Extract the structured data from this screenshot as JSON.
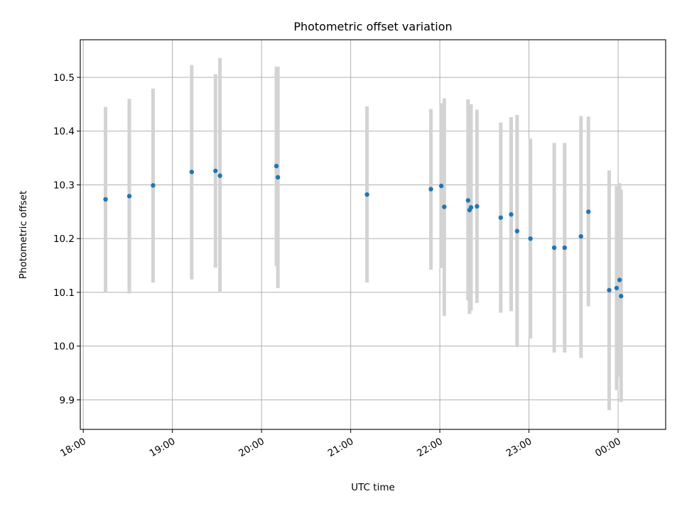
{
  "chart_data": {
    "type": "scatter",
    "title": "Photometric offset variation",
    "xlabel": "UTC time",
    "ylabel": "Photometric offset",
    "x_axis_kind": "time",
    "xlim": [
      "17:58",
      "00:32"
    ],
    "ylim": [
      9.845,
      10.57
    ],
    "x_ticks": [
      "18:00",
      "19:00",
      "20:00",
      "21:00",
      "22:00",
      "23:00",
      "00:00"
    ],
    "y_ticks": [
      "9.9",
      "10.0",
      "10.1",
      "10.2",
      "10.3",
      "10.4",
      "10.5"
    ],
    "grid": true,
    "legend": "none",
    "colors": {
      "points": "#1f77b4",
      "errorbars": "#d3d3d3",
      "grid": "#b0b0b0"
    },
    "series": [
      {
        "points": [
          {
            "x": "18:15",
            "y": 10.273,
            "ylow": 10.1,
            "yhigh": 10.445
          },
          {
            "x": "18:31",
            "y": 10.279,
            "ylow": 10.098,
            "yhigh": 10.46
          },
          {
            "x": "18:47",
            "y": 10.299,
            "ylow": 10.118,
            "yhigh": 10.479
          },
          {
            "x": "19:13",
            "y": 10.324,
            "ylow": 10.124,
            "yhigh": 10.523
          },
          {
            "x": "19:29",
            "y": 10.326,
            "ylow": 10.146,
            "yhigh": 10.506
          },
          {
            "x": "19:32",
            "y": 10.317,
            "ylow": 10.099,
            "yhigh": 10.536
          },
          {
            "x": "20:10",
            "y": 10.335,
            "ylow": 10.149,
            "yhigh": 10.52
          },
          {
            "x": "20:11",
            "y": 10.314,
            "ylow": 10.108,
            "yhigh": 10.52
          },
          {
            "x": "21:11",
            "y": 10.282,
            "ylow": 10.118,
            "yhigh": 10.446
          },
          {
            "x": "21:54",
            "y": 10.292,
            "ylow": 10.142,
            "yhigh": 10.441
          },
          {
            "x": "22:01",
            "y": 10.298,
            "ylow": 10.145,
            "yhigh": 10.452
          },
          {
            "x": "22:03",
            "y": 10.259,
            "ylow": 10.056,
            "yhigh": 10.461
          },
          {
            "x": "22:19",
            "y": 10.271,
            "ylow": 10.085,
            "yhigh": 10.459
          },
          {
            "x": "22:20",
            "y": 10.253,
            "ylow": 10.06,
            "yhigh": 10.446
          },
          {
            "x": "22:21",
            "y": 10.258,
            "ylow": 10.066,
            "yhigh": 10.45
          },
          {
            "x": "22:25",
            "y": 10.26,
            "ylow": 10.08,
            "yhigh": 10.44
          },
          {
            "x": "22:41",
            "y": 10.239,
            "ylow": 10.062,
            "yhigh": 10.416
          },
          {
            "x": "22:48",
            "y": 10.245,
            "ylow": 10.065,
            "yhigh": 10.426
          },
          {
            "x": "22:52",
            "y": 10.214,
            "ylow": 9.998,
            "yhigh": 10.43
          },
          {
            "x": "23:01",
            "y": 10.2,
            "ylow": 10.014,
            "yhigh": 10.386
          },
          {
            "x": "23:17",
            "y": 10.183,
            "ylow": 9.988,
            "yhigh": 10.378
          },
          {
            "x": "23:24",
            "y": 10.183,
            "ylow": 9.988,
            "yhigh": 10.378
          },
          {
            "x": "23:35",
            "y": 10.204,
            "ylow": 9.978,
            "yhigh": 10.428
          },
          {
            "x": "23:40",
            "y": 10.25,
            "ylow": 10.074,
            "yhigh": 10.427
          },
          {
            "x": "23:54",
            "y": 10.104,
            "ylow": 9.881,
            "yhigh": 10.327
          },
          {
            "x": "23:59",
            "y": 10.108,
            "ylow": 9.918,
            "yhigh": 10.298
          },
          {
            "x": "00:01",
            "y": 10.123,
            "ylow": 9.943,
            "yhigh": 10.303
          },
          {
            "x": "00:02",
            "y": 10.093,
            "ylow": 9.896,
            "yhigh": 10.291
          }
        ]
      }
    ]
  }
}
